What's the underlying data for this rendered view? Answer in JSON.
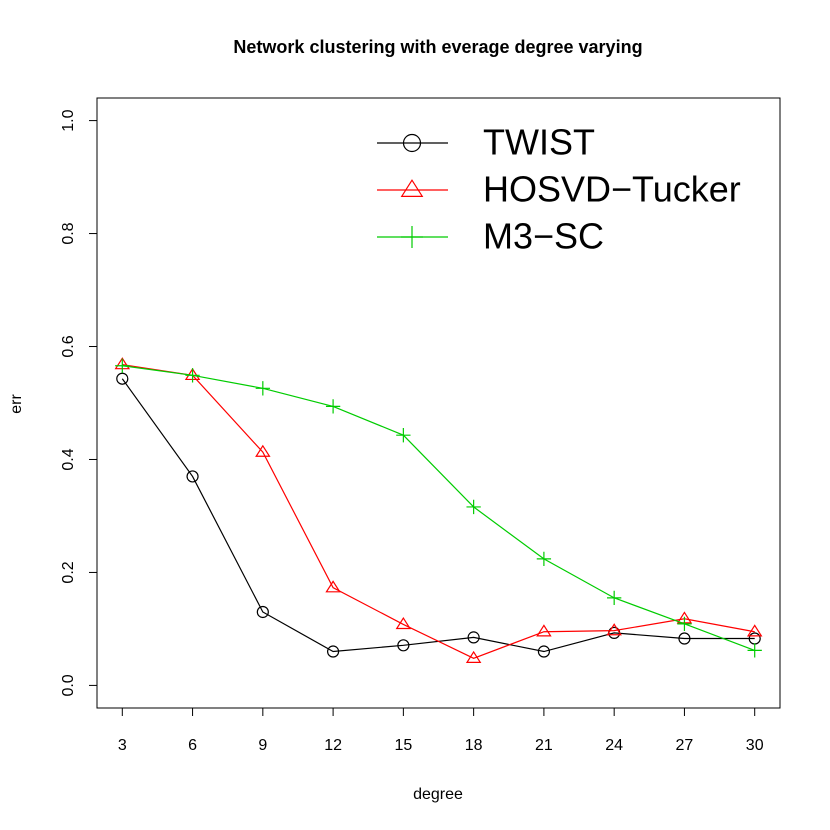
{
  "chart_data": {
    "type": "line",
    "title": "Network clustering with everage degree varying",
    "x_label": "degree",
    "y_label": "err",
    "x": [
      3,
      6,
      9,
      12,
      15,
      18,
      21,
      24,
      27,
      30
    ],
    "series": [
      {
        "name": "TWIST",
        "color": "#000000",
        "marker": "circle",
        "values": [
          0.543,
          0.37,
          0.13,
          0.06,
          0.071,
          0.085,
          0.06,
          0.093,
          0.083,
          0.083
        ]
      },
      {
        "name": "HOSVD−Tucker",
        "color": "#ff0000",
        "marker": "triangle",
        "values": [
          0.568,
          0.549,
          0.413,
          0.173,
          0.108,
          0.048,
          0.095,
          0.097,
          0.118,
          0.095
        ]
      },
      {
        "name": "M3−SC",
        "color": "#00cc00",
        "marker": "plus",
        "values": [
          0.566,
          0.549,
          0.526,
          0.494,
          0.443,
          0.316,
          0.224,
          0.155,
          0.109,
          0.062
        ]
      }
    ],
    "xlim": [
      1.92,
      31.08
    ],
    "ylim": [
      -0.04,
      1.04
    ],
    "xticks": [
      3,
      6,
      9,
      12,
      15,
      18,
      21,
      24,
      27,
      30
    ],
    "yticks": [
      {
        "value": 0,
        "label": "0.0"
      },
      0.2,
      0.4,
      0.6,
      0.8,
      {
        "value": 1,
        "label": "1.0"
      }
    ],
    "legend": "top-right",
    "grid": false
  }
}
